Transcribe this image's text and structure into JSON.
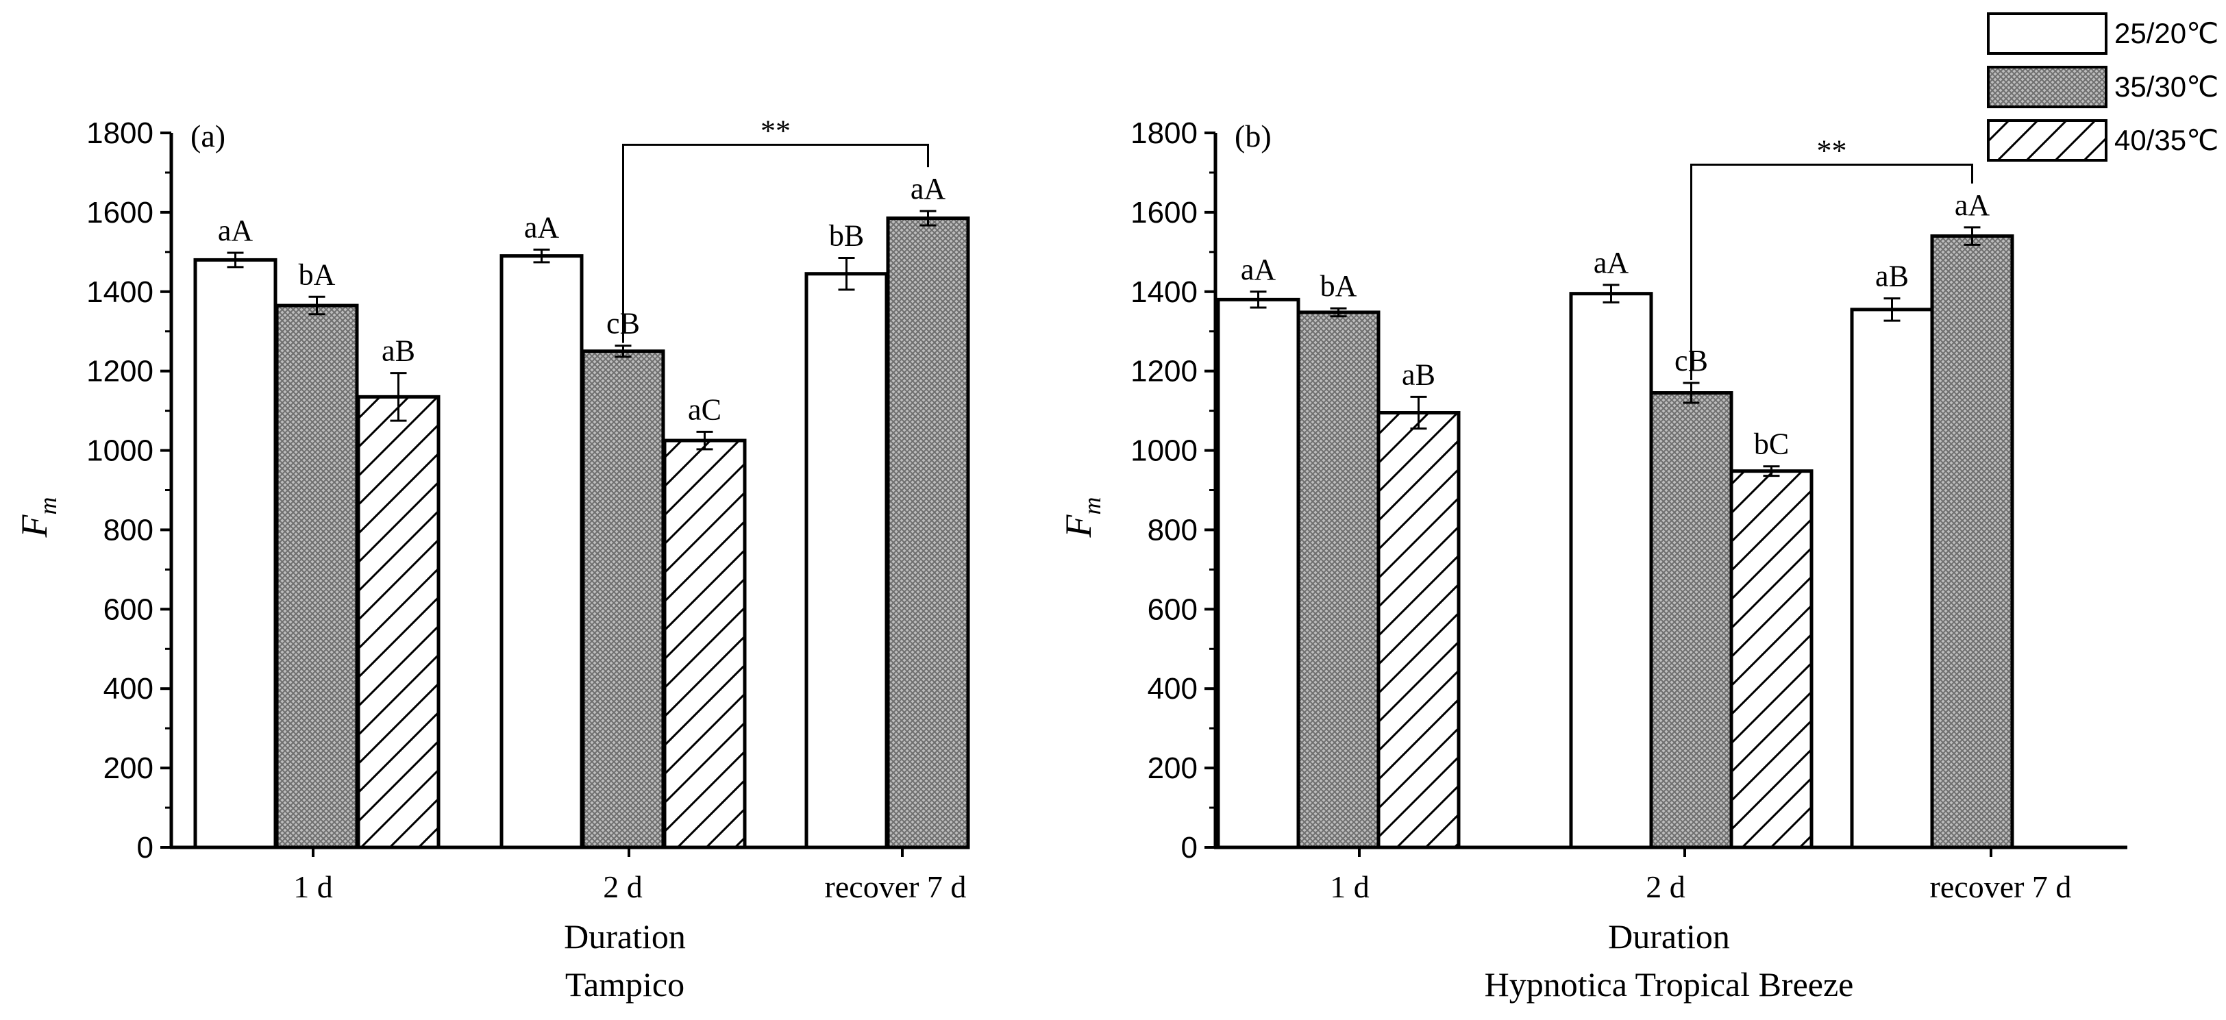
{
  "legend": {
    "items": [
      {
        "label": "25/20℃",
        "pattern": "white"
      },
      {
        "label": "35/30℃",
        "pattern": "cross"
      },
      {
        "label": "40/35℃",
        "pattern": "hatch"
      }
    ]
  },
  "chart_data": [
    {
      "type": "bar",
      "panel_label": "(a)",
      "title": "Tampico",
      "xlabel": "Duration",
      "ylabel_main": "F",
      "ylabel_sub": "m",
      "ylim": [
        0,
        1800
      ],
      "yticks": [
        0,
        200,
        400,
        600,
        800,
        1000,
        1200,
        1400,
        1600,
        1800
      ],
      "categories": [
        "1 d",
        "2 d",
        "recover  7 d"
      ],
      "series": [
        {
          "name": "25/20℃",
          "values": [
            1480,
            1490,
            1445
          ],
          "errors": [
            18,
            16,
            40
          ],
          "letters": [
            "aA",
            "aA",
            "bB"
          ]
        },
        {
          "name": "35/30℃",
          "values": [
            1365,
            1250,
            1585
          ],
          "errors": [
            22,
            14,
            18
          ],
          "letters": [
            "bA",
            "cB",
            "aA"
          ]
        },
        {
          "name": "40/35℃",
          "values": [
            1135,
            1025,
            null
          ],
          "errors": [
            60,
            22,
            null
          ],
          "letters": [
            "aB",
            "aC",
            ""
          ]
        }
      ],
      "significance": {
        "text": "**",
        "from": "2 d / 35/30℃",
        "to": "recover 7 d / 35/30℃",
        "y": 1770
      }
    },
    {
      "type": "bar",
      "panel_label": "(b)",
      "title": "Hypnotica Tropical Breeze",
      "xlabel": "Duration",
      "ylabel_main": "F",
      "ylabel_sub": "m",
      "ylim": [
        0,
        1800
      ],
      "yticks": [
        0,
        200,
        400,
        600,
        800,
        1000,
        1200,
        1400,
        1600,
        1800
      ],
      "categories": [
        "1 d",
        "2 d",
        "recover  7 d"
      ],
      "series": [
        {
          "name": "25/20℃",
          "values": [
            1380,
            1395,
            1355
          ],
          "errors": [
            20,
            22,
            28
          ],
          "letters": [
            "aA",
            "aA",
            "aB"
          ]
        },
        {
          "name": "35/30℃",
          "values": [
            1348,
            1145,
            1540
          ],
          "errors": [
            10,
            25,
            22
          ],
          "letters": [
            "bA",
            "cB",
            "aA"
          ]
        },
        {
          "name": "40/35℃",
          "values": [
            1095,
            948,
            null
          ],
          "errors": [
            40,
            12,
            null
          ],
          "letters": [
            "aB",
            "bC",
            ""
          ]
        }
      ],
      "significance": {
        "text": "**",
        "from": "2 d / 35/30℃",
        "to": "recover 7 d / 35/30℃",
        "y": 1720
      }
    }
  ]
}
